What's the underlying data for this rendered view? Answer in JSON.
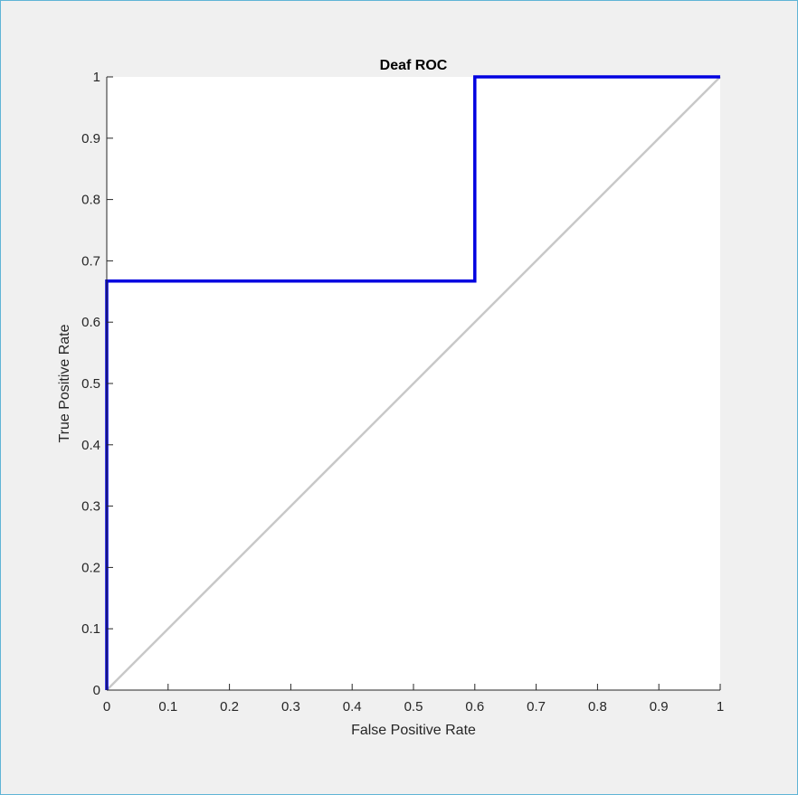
{
  "chart_data": {
    "type": "line",
    "title": "Deaf ROC",
    "xlabel": "False Positive Rate",
    "ylabel": "True Positive Rate",
    "xlim": [
      0,
      1
    ],
    "ylim": [
      0,
      1
    ],
    "xticks": [
      "0",
      "0.1",
      "0.2",
      "0.3",
      "0.4",
      "0.5",
      "0.6",
      "0.7",
      "0.8",
      "0.9",
      "1"
    ],
    "yticks": [
      "0",
      "0.1",
      "0.2",
      "0.3",
      "0.4",
      "0.5",
      "0.6",
      "0.7",
      "0.8",
      "0.9",
      "1"
    ],
    "grid": false,
    "legend": "none",
    "series": [
      {
        "x": [
          0,
          0,
          0.6,
          0.6,
          1
        ],
        "y": [
          0,
          0.667,
          0.667,
          1,
          1
        ],
        "color": "#0000e0"
      },
      {
        "x": [
          0,
          1
        ],
        "y": [
          0,
          1
        ],
        "color": "#c8c8c8"
      }
    ]
  }
}
